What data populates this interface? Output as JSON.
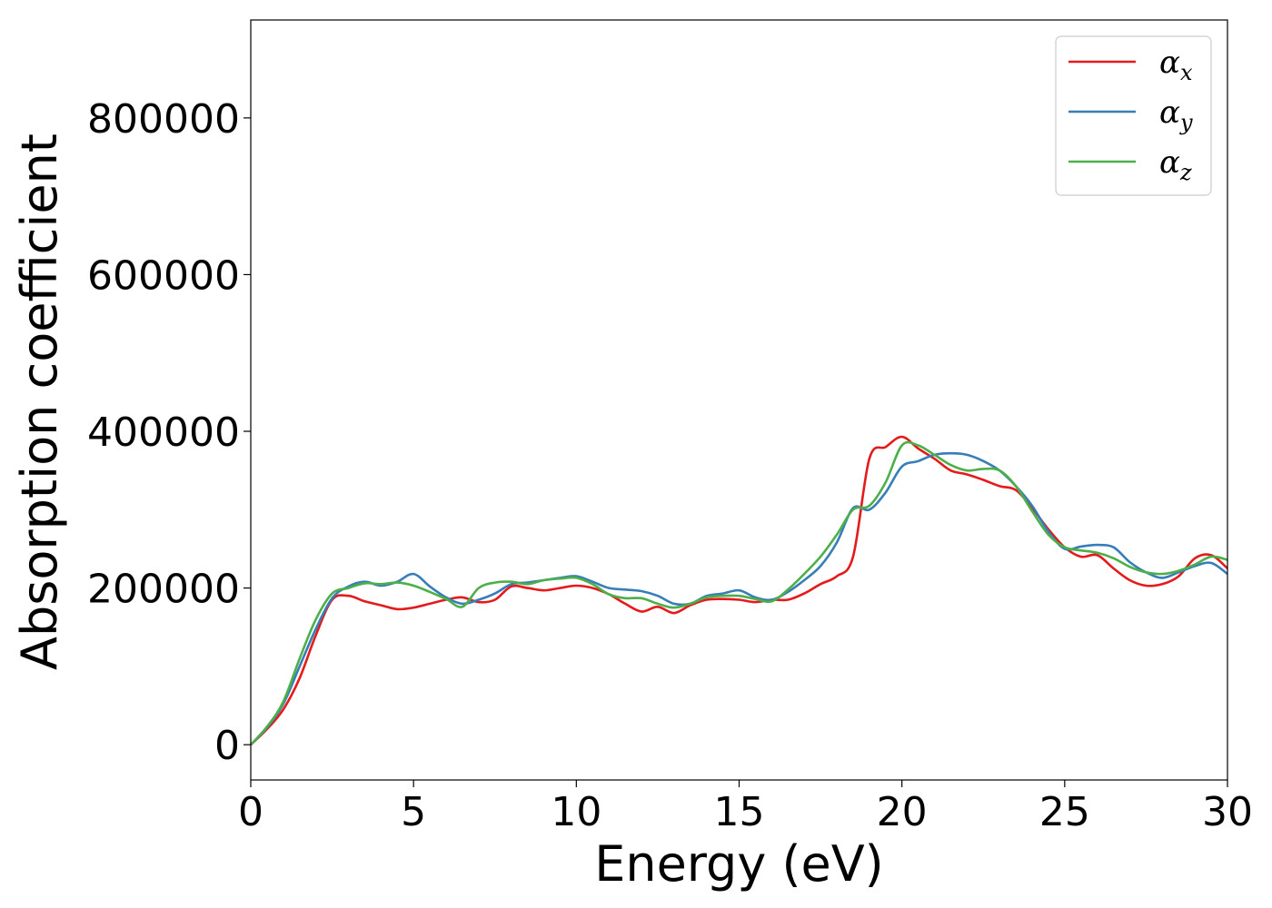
{
  "chart_data": {
    "type": "line",
    "title": "",
    "xlabel": "Energy (eV)",
    "ylabel": "Absorption coefficient",
    "xlim": [
      0,
      30
    ],
    "ylim": [
      -45000,
      925000
    ],
    "xticks": [
      0,
      5,
      10,
      15,
      20,
      25,
      30
    ],
    "xtick_labels": [
      "0",
      "5",
      "10",
      "15",
      "20",
      "25",
      "30"
    ],
    "yticks": [
      0,
      200000,
      400000,
      600000,
      800000
    ],
    "ytick_labels": [
      "0",
      "200000",
      "400000",
      "600000",
      "800000"
    ],
    "grid": false,
    "legend_position": "top-right",
    "series": [
      {
        "name": "α",
        "subscript": "x",
        "color": "#e41a1c",
        "x": [
          0,
          0.5,
          1,
          1.5,
          2,
          2.5,
          3,
          3.5,
          4,
          4.5,
          5,
          5.5,
          6,
          6.5,
          7,
          7.5,
          8,
          8.5,
          9,
          9.5,
          10,
          10.5,
          11,
          11.5,
          12,
          12.5,
          13,
          13.5,
          14,
          14.5,
          15,
          15.5,
          16,
          16.5,
          17,
          17.5,
          18,
          18.5,
          19,
          19.5,
          20,
          20.5,
          21,
          21.5,
          22,
          22.5,
          23,
          23.5,
          24,
          24.5,
          25,
          25.5,
          26,
          26.5,
          27,
          27.5,
          28,
          28.5,
          29,
          29.5,
          30
        ],
        "y": [
          0,
          20000,
          45000,
          85000,
          140000,
          185000,
          190000,
          183000,
          178000,
          173000,
          175000,
          180000,
          185000,
          188000,
          182000,
          185000,
          202000,
          200000,
          197000,
          200000,
          203000,
          200000,
          192000,
          180000,
          170000,
          176000,
          168000,
          178000,
          185000,
          186000,
          185000,
          182000,
          185000,
          185000,
          193000,
          205000,
          215000,
          240000,
          365000,
          380000,
          393000,
          378000,
          365000,
          350000,
          345000,
          338000,
          330000,
          325000,
          302000,
          275000,
          252000,
          240000,
          242000,
          225000,
          210000,
          203000,
          205000,
          215000,
          238000,
          242000,
          225000
        ]
      },
      {
        "name": "α",
        "subscript": "y",
        "color": "#377eb8",
        "x": [
          0,
          0.5,
          1,
          1.5,
          2,
          2.5,
          3,
          3.5,
          4,
          4.5,
          5,
          5.5,
          6,
          6.5,
          7,
          7.5,
          8,
          8.5,
          9,
          9.5,
          10,
          10.5,
          11,
          11.5,
          12,
          12.5,
          13,
          13.5,
          14,
          14.5,
          15,
          15.5,
          16,
          16.5,
          17,
          17.5,
          18,
          18.5,
          19,
          19.5,
          20,
          20.5,
          21,
          21.5,
          22,
          22.5,
          23,
          23.5,
          24,
          24.5,
          25,
          25.5,
          26,
          26.5,
          27,
          27.5,
          28,
          28.5,
          29,
          29.5,
          30
        ],
        "y": [
          0,
          22000,
          52000,
          100000,
          148000,
          187000,
          202000,
          208000,
          203000,
          208000,
          218000,
          202000,
          188000,
          180000,
          185000,
          193000,
          205000,
          207000,
          210000,
          213000,
          215000,
          208000,
          200000,
          198000,
          196000,
          190000,
          180000,
          180000,
          190000,
          193000,
          197000,
          188000,
          185000,
          195000,
          210000,
          228000,
          258000,
          302000,
          300000,
          322000,
          355000,
          362000,
          370000,
          372000,
          370000,
          362000,
          350000,
          330000,
          305000,
          272000,
          250000,
          253000,
          255000,
          252000,
          233000,
          220000,
          213000,
          220000,
          228000,
          232000,
          218000
        ]
      },
      {
        "name": "α",
        "subscript": "z",
        "color": "#4daf4a",
        "x": [
          0,
          0.5,
          1,
          1.5,
          2,
          2.5,
          3,
          3.5,
          4,
          4.5,
          5,
          5.5,
          6,
          6.5,
          7,
          7.5,
          8,
          8.5,
          9,
          9.5,
          10,
          10.5,
          11,
          11.5,
          12,
          12.5,
          13,
          13.5,
          14,
          14.5,
          15,
          15.5,
          16,
          16.5,
          17,
          17.5,
          18,
          18.5,
          19,
          19.5,
          20,
          20.5,
          21,
          21.5,
          22,
          22.5,
          23,
          23.5,
          24,
          24.5,
          25,
          25.5,
          26,
          26.5,
          27,
          27.5,
          28,
          28.5,
          29,
          29.5,
          30
        ],
        "y": [
          0,
          23000,
          55000,
          110000,
          160000,
          193000,
          200000,
          206000,
          205000,
          207000,
          203000,
          195000,
          186000,
          176000,
          200000,
          207000,
          208000,
          205000,
          210000,
          212000,
          213000,
          205000,
          192000,
          187000,
          187000,
          180000,
          175000,
          180000,
          188000,
          190000,
          190000,
          186000,
          183000,
          198000,
          218000,
          240000,
          268000,
          300000,
          305000,
          335000,
          382000,
          382000,
          370000,
          357000,
          350000,
          352000,
          350000,
          330000,
          298000,
          268000,
          252000,
          248000,
          245000,
          238000,
          227000,
          220000,
          218000,
          222000,
          230000,
          240000,
          236000
        ]
      }
    ]
  }
}
